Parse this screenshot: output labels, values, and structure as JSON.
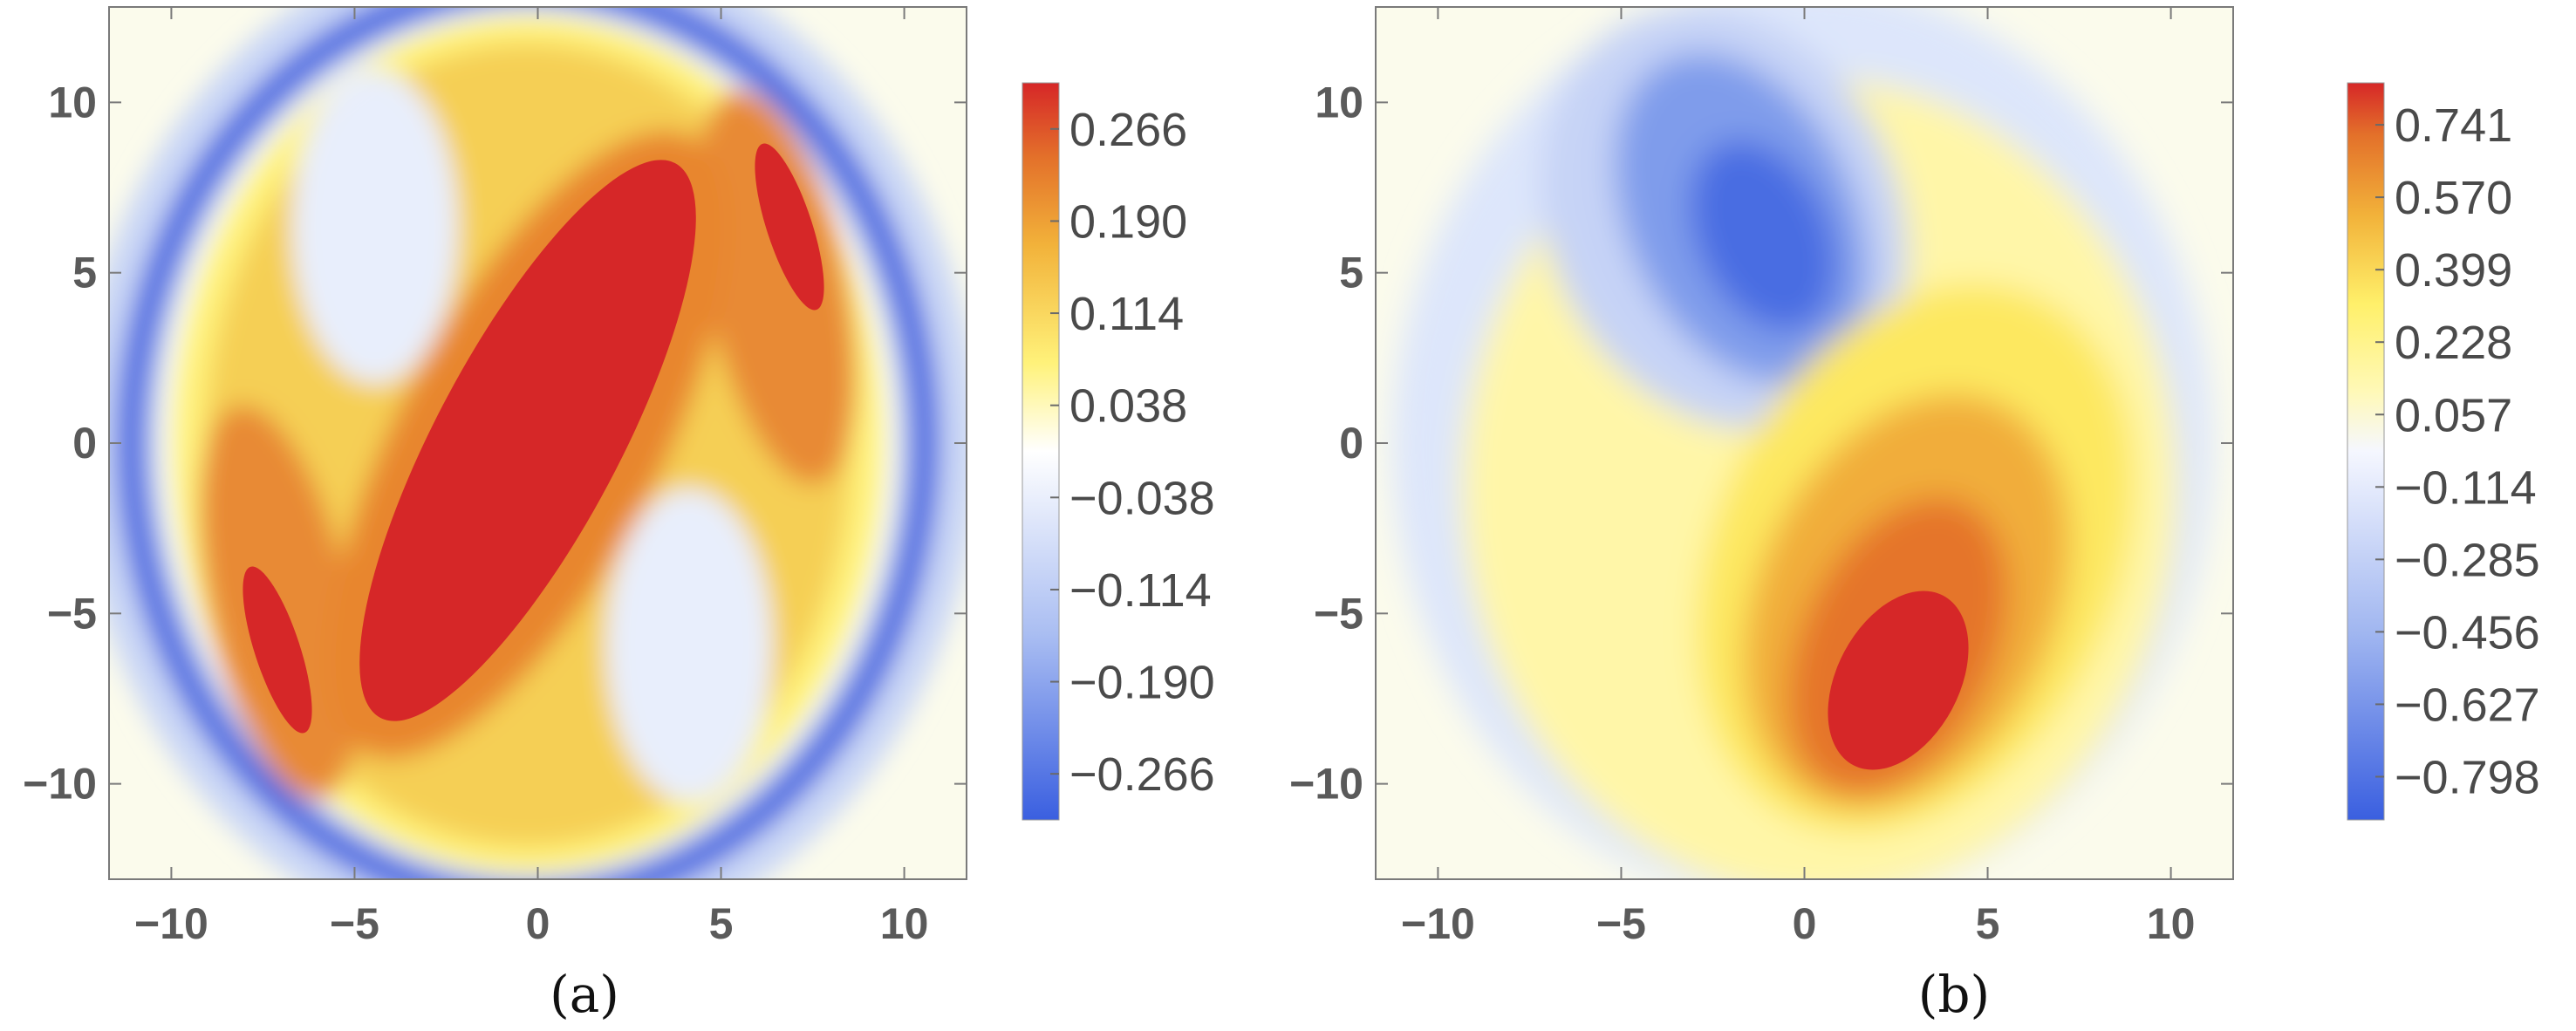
{
  "chart_data": [
    {
      "type": "heatmap",
      "caption": "(a)",
      "xlim": [
        -11.7,
        11.7
      ],
      "ylim": [
        -12.8,
        12.8
      ],
      "x_ticks": [
        -10,
        -5,
        0,
        5,
        10
      ],
      "y_ticks": [
        10,
        5,
        0,
        -5,
        -10
      ],
      "x_tick_labels": [
        "−10",
        "−5",
        "0",
        "5",
        "10"
      ],
      "y_tick_labels": [
        "10",
        "5",
        "0",
        "−5",
        "−10"
      ],
      "colorbar": {
        "min": -0.304,
        "max": 0.304,
        "tick_values": [
          0.266,
          0.19,
          0.114,
          0.038,
          -0.038,
          -0.114,
          -0.19,
          -0.266
        ],
        "tick_labels": [
          "0.266",
          "0.190",
          "0.114",
          "0.038",
          "−0.038",
          "−0.114",
          "−0.190",
          "−0.266"
        ]
      },
      "colors": {
        "low": "#3a5fe0",
        "mid": "#ffffff",
        "high": "#d62728"
      }
    },
    {
      "type": "heatmap",
      "caption": "(b)",
      "xlim": [
        -11.7,
        11.7
      ],
      "ylim": [
        -12.8,
        12.8
      ],
      "x_ticks": [
        -10,
        -5,
        0,
        5,
        10
      ],
      "y_ticks": [
        10,
        5,
        0,
        -5,
        -10
      ],
      "x_tick_labels": [
        "−10",
        "−5",
        "0",
        "5",
        "10"
      ],
      "y_tick_labels": [
        "10",
        "5",
        "0",
        "−5",
        "−10"
      ],
      "colorbar": {
        "min": -0.9,
        "max": 0.84,
        "tick_values": [
          0.741,
          0.57,
          0.399,
          0.228,
          0.057,
          -0.114,
          -0.285,
          -0.456,
          -0.627,
          -0.798
        ],
        "tick_labels": [
          "0.741",
          "0.570",
          "0.399",
          "0.228",
          "0.057",
          "−0.114",
          "−0.285",
          "−0.456",
          "−0.627",
          "−0.798"
        ]
      },
      "colors": {
        "low": "#3a5fe0",
        "mid": "#ffffff",
        "high": "#d62728"
      }
    }
  ]
}
